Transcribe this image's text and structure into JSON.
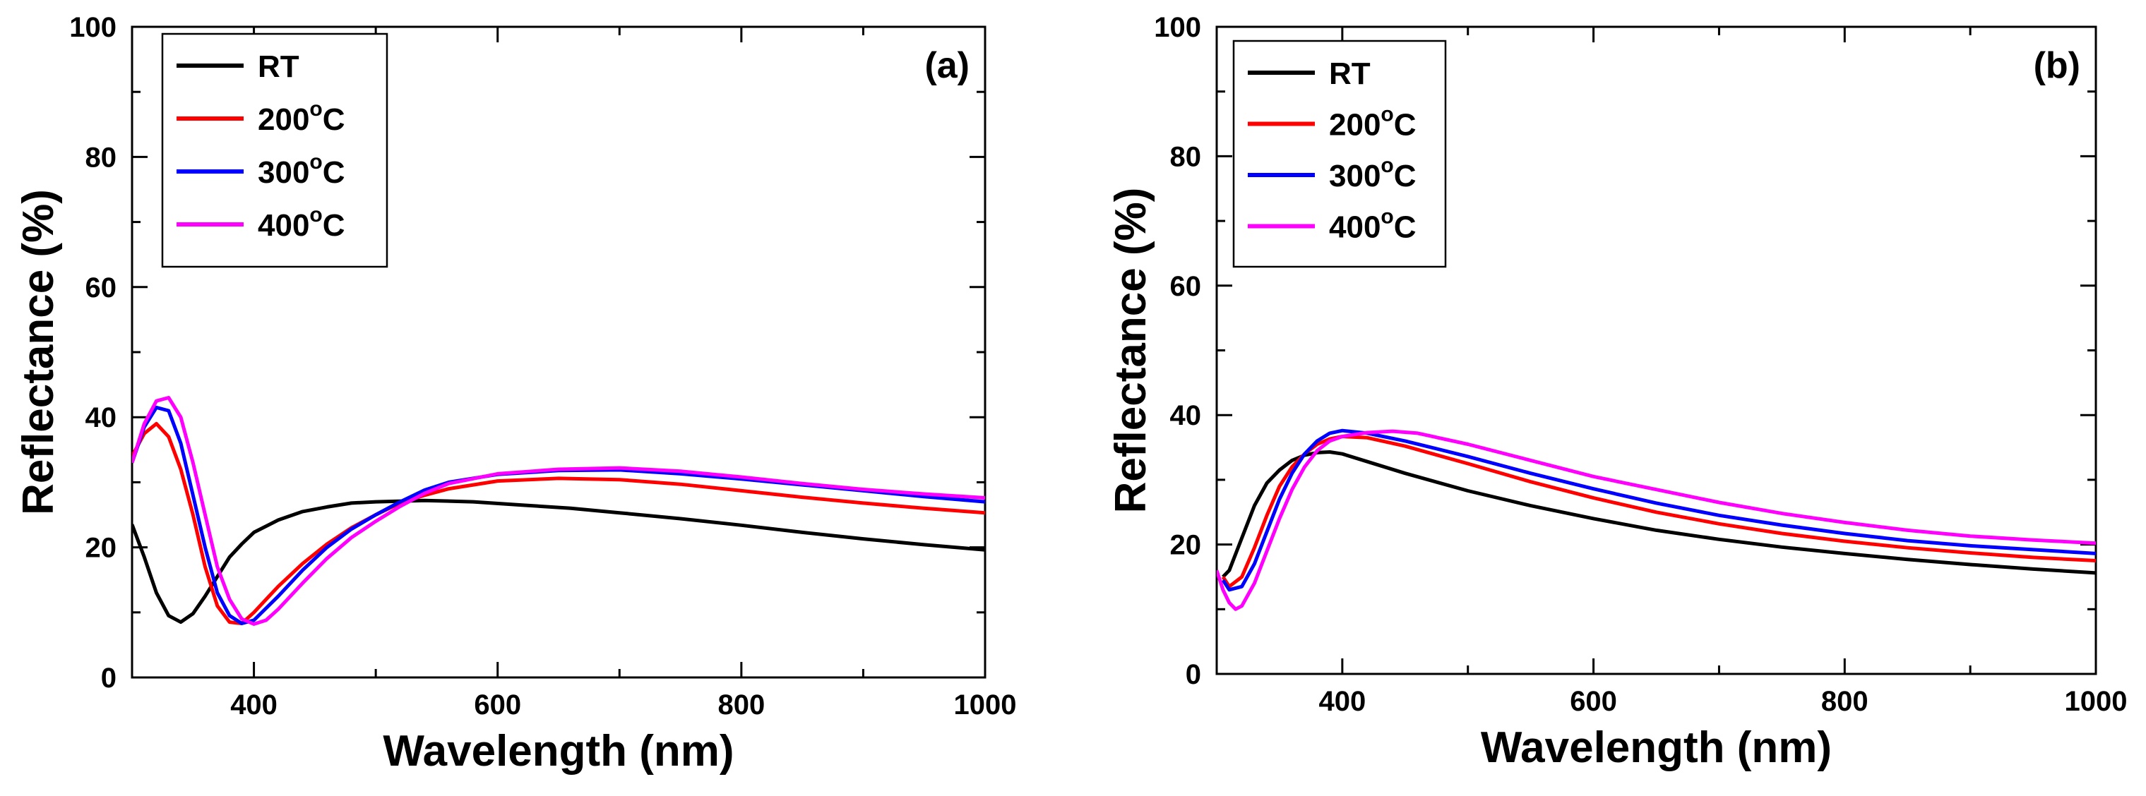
{
  "chart_data": [
    {
      "type": "line",
      "panel_label": "(a)",
      "xlabel": "Wavelength (nm)",
      "ylabel": "Reflectance (%)",
      "xlim": [
        300,
        1000
      ],
      "ylim": [
        0,
        100
      ],
      "xticks": [
        400,
        600,
        800,
        1000
      ],
      "yticks": [
        0,
        20,
        40,
        60,
        80,
        100
      ],
      "legend_position": "top-left",
      "series": [
        {
          "name": "RT",
          "label_main": "RT",
          "label_sup": "",
          "label_tail": "",
          "color": "#000000",
          "x": [
            300,
            310,
            320,
            330,
            340,
            350,
            360,
            370,
            380,
            390,
            400,
            420,
            440,
            460,
            480,
            500,
            540,
            580,
            620,
            660,
            700,
            750,
            800,
            850,
            900,
            950,
            1000
          ],
          "y": [
            23.5,
            18.5,
            13,
            9.5,
            8.5,
            9.8,
            12.5,
            15.5,
            18.5,
            20.5,
            22.3,
            24.2,
            25.5,
            26.2,
            26.8,
            27,
            27.2,
            27,
            26.5,
            26,
            25.3,
            24.4,
            23.4,
            22.3,
            21.3,
            20.4,
            19.6
          ]
        },
        {
          "name": "200°C",
          "label_main": "200",
          "label_sup": "o",
          "label_tail": "C",
          "color": "#ff0000",
          "x": [
            300,
            310,
            320,
            330,
            340,
            350,
            360,
            370,
            380,
            390,
            400,
            420,
            440,
            460,
            480,
            500,
            520,
            540,
            560,
            600,
            650,
            700,
            750,
            800,
            850,
            900,
            950,
            1000
          ],
          "y": [
            34,
            37.5,
            39,
            37,
            32,
            25,
            17,
            11,
            8.5,
            8.3,
            10,
            14,
            17.5,
            20.5,
            23,
            25,
            26.8,
            28,
            29,
            30.2,
            30.6,
            30.4,
            29.7,
            28.7,
            27.7,
            26.8,
            26,
            25.3
          ]
        },
        {
          "name": "300°C",
          "label_main": "300",
          "label_sup": "o",
          "label_tail": "C",
          "color": "#0000ff",
          "x": [
            300,
            310,
            320,
            330,
            340,
            350,
            360,
            370,
            380,
            390,
            400,
            420,
            440,
            460,
            480,
            500,
            520,
            540,
            560,
            600,
            650,
            700,
            750,
            800,
            850,
            900,
            950,
            1000
          ],
          "y": [
            33,
            38.5,
            41.5,
            41,
            36,
            28,
            20,
            13,
            9.5,
            8.3,
            8.8,
            12.5,
            16.5,
            20,
            22.8,
            25,
            27,
            28.8,
            30,
            31.2,
            31.8,
            31.9,
            31.3,
            30.5,
            29.6,
            28.7,
            27.8,
            27
          ]
        },
        {
          "name": "400°C",
          "label_main": "400",
          "label_sup": "o",
          "label_tail": "C",
          "color": "#ff00ff",
          "x": [
            300,
            310,
            320,
            330,
            340,
            350,
            360,
            370,
            380,
            390,
            400,
            410,
            420,
            440,
            460,
            480,
            500,
            520,
            540,
            560,
            600,
            650,
            700,
            750,
            800,
            850,
            900,
            950,
            1000
          ],
          "y": [
            33,
            39,
            42.5,
            43,
            40,
            33,
            25,
            17,
            12,
            9,
            8.2,
            8.8,
            10.5,
            14.5,
            18.3,
            21.5,
            24,
            26.3,
            28.3,
            29.8,
            31.3,
            32,
            32.2,
            31.7,
            30.8,
            29.8,
            28.9,
            28.2,
            27.6
          ]
        }
      ]
    },
    {
      "type": "line",
      "panel_label": "(b)",
      "xlabel": "Wavelength (nm)",
      "ylabel": "Reflectance (%)",
      "xlim": [
        300,
        1000
      ],
      "ylim": [
        0,
        100
      ],
      "xticks": [
        400,
        600,
        800,
        1000
      ],
      "yticks": [
        0,
        20,
        40,
        60,
        80,
        100
      ],
      "legend_position": "top-left",
      "series": [
        {
          "name": "RT",
          "label_main": "RT",
          "label_sup": "",
          "label_tail": "",
          "color": "#000000",
          "x": [
            305,
            310,
            320,
            330,
            340,
            350,
            360,
            370,
            380,
            390,
            400,
            420,
            450,
            500,
            550,
            600,
            650,
            700,
            750,
            800,
            850,
            900,
            950,
            1000
          ],
          "y": [
            15,
            16,
            21,
            26,
            29.5,
            31.5,
            33,
            33.8,
            34.2,
            34.3,
            34,
            32.8,
            31,
            28.3,
            26,
            24,
            22.2,
            20.8,
            19.6,
            18.6,
            17.7,
            16.9,
            16.2,
            15.6
          ]
        },
        {
          "name": "200°C",
          "label_main": "200",
          "label_sup": "o",
          "label_tail": "C",
          "color": "#ff0000",
          "x": [
            305,
            310,
            320,
            330,
            340,
            350,
            360,
            370,
            380,
            390,
            400,
            420,
            450,
            500,
            550,
            600,
            650,
            700,
            750,
            800,
            850,
            900,
            950,
            1000
          ],
          "y": [
            15,
            13.5,
            15,
            19.5,
            24.5,
            29,
            32,
            34,
            35.5,
            36.3,
            36.7,
            36.5,
            35.2,
            32.5,
            29.7,
            27.2,
            25,
            23.2,
            21.7,
            20.5,
            19.5,
            18.7,
            18,
            17.5
          ]
        },
        {
          "name": "300°C",
          "label_main": "300",
          "label_sup": "o",
          "label_tail": "C",
          "color": "#0000ff",
          "x": [
            305,
            310,
            320,
            330,
            340,
            350,
            360,
            370,
            380,
            390,
            400,
            420,
            450,
            500,
            550,
            600,
            650,
            700,
            750,
            800,
            850,
            900,
            950,
            1000
          ],
          "y": [
            14.5,
            13,
            13.5,
            17,
            22,
            27,
            31,
            34,
            36,
            37.2,
            37.6,
            37.2,
            36,
            33.6,
            31,
            28.6,
            26.4,
            24.5,
            23,
            21.7,
            20.6,
            19.8,
            19.2,
            18.6
          ]
        },
        {
          "name": "400°C",
          "label_main": "400",
          "label_sup": "o",
          "label_tail": "C",
          "color": "#ff00ff",
          "x": [
            300,
            305,
            310,
            315,
            320,
            330,
            340,
            350,
            360,
            370,
            380,
            390,
            400,
            420,
            440,
            460,
            500,
            550,
            600,
            650,
            700,
            750,
            800,
            850,
            900,
            950,
            1000
          ],
          "y": [
            16,
            13,
            11,
            10,
            10.5,
            14,
            19,
            24,
            28.5,
            32,
            34.5,
            36,
            36.7,
            37.3,
            37.5,
            37.2,
            35.5,
            33,
            30.5,
            28.5,
            26.5,
            24.8,
            23.4,
            22.2,
            21.3,
            20.7,
            20.2
          ]
        }
      ]
    }
  ]
}
